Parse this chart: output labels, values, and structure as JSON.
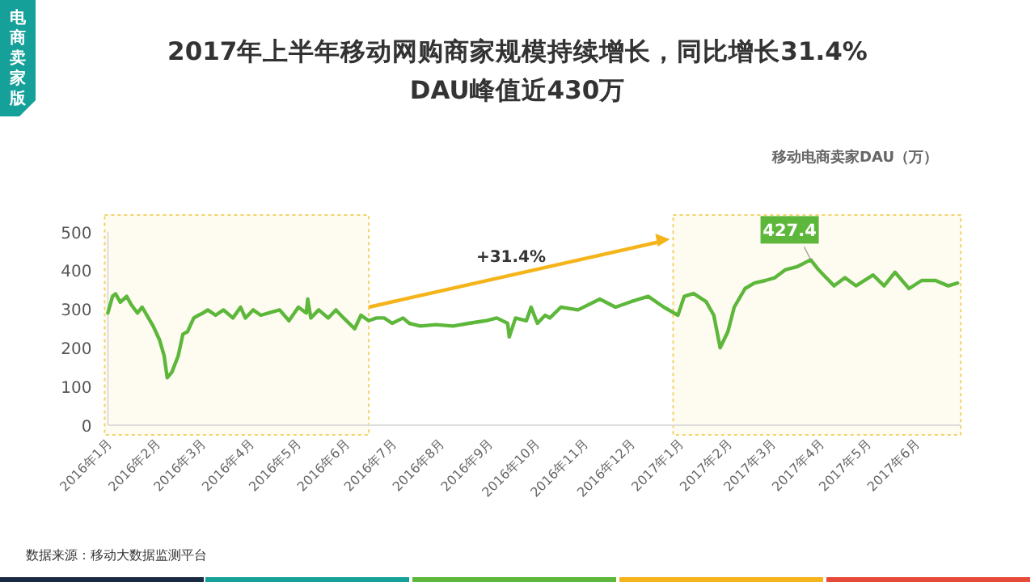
{
  "chart_data": {
    "type": "line",
    "title": "2017年上半年移动网购商家规模持续增长，同比增长31.4%",
    "subtitle": "DAU峰值近430万",
    "ylabel": "移动电商卖家DAU（万）",
    "x": [
      "2016-01-01",
      "2016-01-04",
      "2016-01-06",
      "2016-01-09",
      "2016-01-13",
      "2016-01-16",
      "2016-01-20",
      "2016-01-23",
      "2016-01-27",
      "2016-01-30",
      "2016-02-03",
      "2016-02-06",
      "2016-02-08",
      "2016-02-11",
      "2016-02-15",
      "2016-02-18",
      "2016-02-21",
      "2016-02-25",
      "2016-02-28",
      "2016-03-02",
      "2016-03-05",
      "2016-03-10",
      "2016-03-15",
      "2016-03-21",
      "2016-03-26",
      "2016-03-29",
      "2016-04-03",
      "2016-04-08",
      "2016-04-13",
      "2016-04-20",
      "2016-04-26",
      "2016-05-02",
      "2016-05-07",
      "2016-05-08",
      "2016-05-10",
      "2016-05-15",
      "2016-05-21",
      "2016-05-26",
      "2016-05-31",
      "2016-06-07",
      "2016-06-11",
      "2016-06-16",
      "2016-06-21",
      "2016-06-26",
      "2016-07-01",
      "2016-07-08",
      "2016-07-12",
      "2016-07-19",
      "2016-07-29",
      "2016-08-09",
      "2016-08-19",
      "2016-08-30",
      "2016-09-06",
      "2016-09-13",
      "2016-09-14",
      "2016-09-18",
      "2016-09-25",
      "2016-09-28",
      "2016-10-02",
      "2016-10-07",
      "2016-10-10",
      "2016-10-17",
      "2016-10-28",
      "2016-11-11",
      "2016-11-21",
      "2016-12-01",
      "2016-12-12",
      "2016-12-22",
      "2016-12-31",
      "2017-01-04",
      "2017-01-10",
      "2017-01-18",
      "2017-01-23",
      "2017-01-27",
      "2017-02-01",
      "2017-02-05",
      "2017-02-12",
      "2017-02-18",
      "2017-02-25",
      "2017-03-03",
      "2017-03-10",
      "2017-03-17",
      "2017-03-26",
      "2017-03-31",
      "2017-04-05",
      "2017-04-10",
      "2017-04-17",
      "2017-04-24",
      "2017-05-05",
      "2017-05-12",
      "2017-05-19",
      "2017-05-28",
      "2017-06-05",
      "2017-06-14",
      "2017-06-22",
      "2017-06-28"
    ],
    "series": [
      {
        "color": "#5cb73a",
        "values": [
          290,
          333,
          339,
          318,
          333,
          311,
          290,
          305,
          277,
          256,
          221,
          179,
          123,
          137,
          179,
          235,
          242,
          277,
          284,
          290,
          298,
          284,
          298,
          277,
          305,
          277,
          298,
          284,
          290,
          298,
          270,
          305,
          290,
          326,
          277,
          298,
          277,
          298,
          277,
          249,
          284,
          270,
          277,
          277,
          263,
          277,
          263,
          256,
          260,
          256,
          263,
          270,
          277,
          263,
          228,
          277,
          270,
          305,
          263,
          284,
          277,
          305,
          298,
          326,
          305,
          319,
          333,
          305,
          284,
          333,
          340,
          319,
          284,
          200,
          242,
          305,
          353,
          367,
          374,
          381,
          402,
          409,
          427.4,
          402,
          381,
          360,
          381,
          360,
          388,
          360,
          395,
          353,
          374,
          374,
          360,
          367
        ]
      }
    ],
    "xlim": [
      "2016-01-01",
      "2017-06-30"
    ],
    "xticks": [
      {
        "value": "2016-01-01",
        "label": "2016年1月"
      },
      {
        "value": "2016-02-01",
        "label": "2016年2月"
      },
      {
        "value": "2016-03-01",
        "label": "2016年3月"
      },
      {
        "value": "2016-04-01",
        "label": "2016年4月"
      },
      {
        "value": "2016-05-01",
        "label": "2016年5月"
      },
      {
        "value": "2016-06-01",
        "label": "2016年6月"
      },
      {
        "value": "2016-07-01",
        "label": "2016年7月"
      },
      {
        "value": "2016-08-01",
        "label": "2016年8月"
      },
      {
        "value": "2016-09-01",
        "label": "2016年9月"
      },
      {
        "value": "2016-10-01",
        "label": "2016年10月"
      },
      {
        "value": "2016-11-01",
        "label": "2016年11月"
      },
      {
        "value": "2016-12-01",
        "label": "2016年12月"
      },
      {
        "value": "2017-01-01",
        "label": "2017年1月"
      },
      {
        "value": "2017-02-01",
        "label": "2017年2月"
      },
      {
        "value": "2017-03-01",
        "label": "2017年3月"
      },
      {
        "value": "2017-04-01",
        "label": "2017年4月"
      },
      {
        "value": "2017-05-01",
        "label": "2017年5月"
      },
      {
        "value": "2017-06-01",
        "label": "2017年6月"
      }
    ],
    "ylim": [
      0,
      500
    ],
    "yticks": [
      0,
      100,
      200,
      300,
      400,
      500
    ],
    "bands": [
      {
        "axis": "x",
        "from": "2016-01-01",
        "to": "2016-06-14",
        "color": "#f2d36b"
      },
      {
        "axis": "x",
        "from": "2016-12-30",
        "to": "2017-06-28",
        "color": "#f2d36b"
      }
    ],
    "annotations": [
      "电商卖家版",
      {
        "text": "427.4",
        "x": "2017-03-26",
        "y": 427.4
      },
      "+31.4%",
      "数据来源：移动大数据监测平台"
    ]
  }
}
